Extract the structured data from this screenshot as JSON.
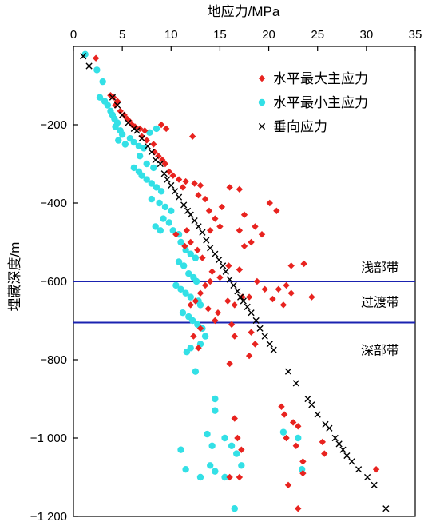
{
  "chart_data": {
    "type": "scatter",
    "title": "",
    "xlabel": "地应力/MPa",
    "ylabel": "埋藏深度/m",
    "x_axis_position": "top",
    "xlim": [
      0,
      35
    ],
    "ylim": [
      -1200,
      0
    ],
    "x_ticks": [
      0,
      5,
      10,
      15,
      20,
      25,
      30,
      35
    ],
    "y_ticks": [
      -200,
      -400,
      -600,
      -800,
      -1000,
      -1200
    ],
    "y_tick_labels": [
      "−200",
      "−400",
      "−600",
      "−800",
      "−1 000",
      "−1 200"
    ],
    "grid": false,
    "legend_position": "top-right",
    "colors": {
      "max_stress": "#e8231f",
      "min_stress": "#33e0e6",
      "vertical_stress": "#000000",
      "zone_line": "#1a22b0"
    },
    "zones": {
      "boundaries": [
        -600,
        -705
      ],
      "labels": [
        "浅部带",
        "过渡带",
        "深部带"
      ]
    },
    "series": [
      {
        "name": "水平最大主应力",
        "marker": "diamond",
        "points": [
          [
            2.3,
            -30
          ],
          [
            3.8,
            -125
          ],
          [
            4.1,
            -130
          ],
          [
            4.5,
            -140
          ],
          [
            4.3,
            -150
          ],
          [
            4.8,
            -165
          ],
          [
            5.2,
            -175
          ],
          [
            5.5,
            -185
          ],
          [
            5.7,
            -190
          ],
          [
            6.0,
            -200
          ],
          [
            6.3,
            -205
          ],
          [
            6.8,
            -210
          ],
          [
            7.3,
            -215
          ],
          [
            7.0,
            -230
          ],
          [
            7.5,
            -240
          ],
          [
            8.2,
            -250
          ],
          [
            9.0,
            -200
          ],
          [
            9.5,
            -210
          ],
          [
            12.2,
            -230
          ],
          [
            8.3,
            -270
          ],
          [
            8.7,
            -280
          ],
          [
            9.1,
            -290
          ],
          [
            9.4,
            -300
          ],
          [
            9.8,
            -320
          ],
          [
            10.2,
            -330
          ],
          [
            10.8,
            -340
          ],
          [
            11.5,
            -345
          ],
          [
            12.4,
            -350
          ],
          [
            13.0,
            -355
          ],
          [
            11.2,
            -360
          ],
          [
            12.8,
            -380
          ],
          [
            13.5,
            -390
          ],
          [
            13.9,
            -420
          ],
          [
            15.2,
            -410
          ],
          [
            14.5,
            -440
          ],
          [
            15.0,
            -460
          ],
          [
            14.0,
            -470
          ],
          [
            10.5,
            -480
          ],
          [
            11.6,
            -470
          ],
          [
            12.0,
            -500
          ],
          [
            12.7,
            -520
          ],
          [
            11.4,
            -510
          ],
          [
            13.2,
            -540
          ],
          [
            16.0,
            -360
          ],
          [
            17.0,
            -365
          ],
          [
            17.5,
            -430
          ],
          [
            17.0,
            -470
          ],
          [
            17.5,
            -510
          ],
          [
            18.2,
            -500
          ],
          [
            18.6,
            -460
          ],
          [
            19.3,
            -480
          ],
          [
            20.1,
            -400
          ],
          [
            20.8,
            -420
          ],
          [
            17.0,
            -570
          ],
          [
            15.9,
            -560
          ],
          [
            14.2,
            -575
          ],
          [
            15.0,
            -590
          ],
          [
            14.0,
            -600
          ],
          [
            13.5,
            -610
          ],
          [
            13.0,
            -630
          ],
          [
            12.5,
            -650
          ],
          [
            12.0,
            -660
          ],
          [
            13.8,
            -670
          ],
          [
            14.8,
            -680
          ],
          [
            15.8,
            -650
          ],
          [
            16.5,
            -660
          ],
          [
            17.3,
            -640
          ],
          [
            18.0,
            -640
          ],
          [
            18.8,
            -600
          ],
          [
            19.6,
            -620
          ],
          [
            20.4,
            -645
          ],
          [
            21.0,
            -620
          ],
          [
            21.8,
            -610
          ],
          [
            22.3,
            -630
          ],
          [
            21.5,
            -660
          ],
          [
            16.2,
            -710
          ],
          [
            16.5,
            -740
          ],
          [
            14.5,
            -700
          ],
          [
            13.0,
            -720
          ],
          [
            12.3,
            -740
          ],
          [
            12.8,
            -770
          ],
          [
            22.3,
            -560
          ],
          [
            23.6,
            -555
          ],
          [
            24.4,
            -640
          ],
          [
            18.2,
            -730
          ],
          [
            18.6,
            -760
          ],
          [
            16.0,
            -810
          ],
          [
            18.0,
            -790
          ],
          [
            16.5,
            -950
          ],
          [
            16.8,
            -1000
          ],
          [
            17.2,
            -1030
          ],
          [
            21.3,
            -920
          ],
          [
            21.6,
            -940
          ],
          [
            21.8,
            -1000
          ],
          [
            22.5,
            -960
          ],
          [
            23.0,
            -970
          ],
          [
            22.8,
            -1020
          ],
          [
            23.5,
            -1060
          ],
          [
            23.5,
            -1090
          ],
          [
            25.5,
            -1010
          ],
          [
            25.7,
            -1040
          ],
          [
            23.0,
            -1180
          ],
          [
            22.0,
            -1120
          ],
          [
            16.0,
            -1100
          ],
          [
            17.0,
            -1100
          ],
          [
            31.0,
            -1080
          ]
        ]
      },
      {
        "name": "水平最小主应力",
        "marker": "circle",
        "points": [
          [
            1.2,
            -20
          ],
          [
            2.4,
            -60
          ],
          [
            3.0,
            -90
          ],
          [
            2.7,
            -130
          ],
          [
            3.2,
            -140
          ],
          [
            3.5,
            -150
          ],
          [
            3.8,
            -165
          ],
          [
            4.0,
            -175
          ],
          [
            4.2,
            -185
          ],
          [
            4.5,
            -195
          ],
          [
            4.3,
            -205
          ],
          [
            4.8,
            -215
          ],
          [
            5.0,
            -225
          ],
          [
            4.6,
            -240
          ],
          [
            5.3,
            -250
          ],
          [
            5.8,
            -235
          ],
          [
            6.2,
            -245
          ],
          [
            6.7,
            -255
          ],
          [
            7.2,
            -260
          ],
          [
            7.8,
            -220
          ],
          [
            8.5,
            -210
          ],
          [
            6.8,
            -280
          ],
          [
            7.5,
            -300
          ],
          [
            8.2,
            -310
          ],
          [
            6.2,
            -310
          ],
          [
            6.7,
            -320
          ],
          [
            7.0,
            -330
          ],
          [
            7.5,
            -340
          ],
          [
            8.0,
            -350
          ],
          [
            8.5,
            -360
          ],
          [
            9.0,
            -370
          ],
          [
            8.0,
            -390
          ],
          [
            8.8,
            -400
          ],
          [
            9.4,
            -410
          ],
          [
            10.0,
            -420
          ],
          [
            9.2,
            -440
          ],
          [
            9.8,
            -450
          ],
          [
            8.4,
            -460
          ],
          [
            8.9,
            -470
          ],
          [
            10.2,
            -470
          ],
          [
            10.8,
            -480
          ],
          [
            11.0,
            -500
          ],
          [
            11.5,
            -520
          ],
          [
            12.0,
            -530
          ],
          [
            12.5,
            -540
          ],
          [
            10.8,
            -550
          ],
          [
            11.3,
            -560
          ],
          [
            11.8,
            -580
          ],
          [
            12.3,
            -590
          ],
          [
            12.6,
            -600
          ],
          [
            10.5,
            -610
          ],
          [
            11.0,
            -620
          ],
          [
            11.5,
            -630
          ],
          [
            12.0,
            -640
          ],
          [
            12.8,
            -650
          ],
          [
            13.0,
            -660
          ],
          [
            11.2,
            -680
          ],
          [
            11.8,
            -690
          ],
          [
            12.2,
            -700
          ],
          [
            12.7,
            -710
          ],
          [
            13.2,
            -720
          ],
          [
            13.5,
            -740
          ],
          [
            13.0,
            -760
          ],
          [
            12.0,
            -770
          ],
          [
            11.6,
            -780
          ],
          [
            12.5,
            -830
          ],
          [
            14.5,
            -900
          ],
          [
            14.5,
            -930
          ],
          [
            13.7,
            -990
          ],
          [
            14.2,
            -1020
          ],
          [
            15.5,
            -1000
          ],
          [
            16.2,
            -1020
          ],
          [
            16.7,
            -1040
          ],
          [
            14.0,
            -1070
          ],
          [
            14.5,
            -1085
          ],
          [
            11.5,
            -1080
          ],
          [
            11.0,
            -1030
          ],
          [
            13.0,
            -1100
          ],
          [
            16.5,
            -1180
          ],
          [
            15.5,
            -1100
          ],
          [
            21.5,
            -985
          ],
          [
            23.0,
            -1000
          ],
          [
            23.4,
            -1080
          ],
          [
            17.2,
            -1070
          ]
        ]
      },
      {
        "name": "垂向应力",
        "marker": "x",
        "points": [
          [
            1.0,
            -25
          ],
          [
            1.6,
            -50
          ],
          [
            4.0,
            -130
          ],
          [
            4.5,
            -150
          ],
          [
            5.0,
            -175
          ],
          [
            5.6,
            -195
          ],
          [
            6.2,
            -210
          ],
          [
            6.5,
            -215
          ],
          [
            7.0,
            -235
          ],
          [
            7.6,
            -255
          ],
          [
            8.0,
            -270
          ],
          [
            8.4,
            -290
          ],
          [
            8.9,
            -300
          ],
          [
            9.3,
            -325
          ],
          [
            9.6,
            -340
          ],
          [
            10.0,
            -355
          ],
          [
            10.4,
            -370
          ],
          [
            10.8,
            -385
          ],
          [
            11.3,
            -405
          ],
          [
            11.7,
            -420
          ],
          [
            12.0,
            -430
          ],
          [
            12.4,
            -445
          ],
          [
            12.8,
            -460
          ],
          [
            13.2,
            -475
          ],
          [
            13.6,
            -495
          ],
          [
            14.0,
            -515
          ],
          [
            14.5,
            -530
          ],
          [
            14.9,
            -545
          ],
          [
            15.3,
            -560
          ],
          [
            15.6,
            -575
          ],
          [
            16.0,
            -595
          ],
          [
            16.4,
            -610
          ],
          [
            16.8,
            -625
          ],
          [
            17.1,
            -640
          ],
          [
            17.4,
            -650
          ],
          [
            17.8,
            -665
          ],
          [
            18.2,
            -680
          ],
          [
            18.7,
            -700
          ],
          [
            19.1,
            -720
          ],
          [
            19.6,
            -740
          ],
          [
            20.1,
            -760
          ],
          [
            20.5,
            -775
          ],
          [
            22.0,
            -830
          ],
          [
            22.8,
            -860
          ],
          [
            24.0,
            -900
          ],
          [
            24.4,
            -915
          ],
          [
            25.0,
            -940
          ],
          [
            25.8,
            -965
          ],
          [
            26.2,
            -975
          ],
          [
            26.8,
            -1000
          ],
          [
            27.2,
            -1015
          ],
          [
            27.6,
            -1030
          ],
          [
            28.0,
            -1045
          ],
          [
            28.5,
            -1060
          ],
          [
            29.2,
            -1080
          ],
          [
            30.1,
            -1100
          ],
          [
            30.8,
            -1120
          ],
          [
            32.0,
            -1180
          ]
        ]
      }
    ]
  }
}
